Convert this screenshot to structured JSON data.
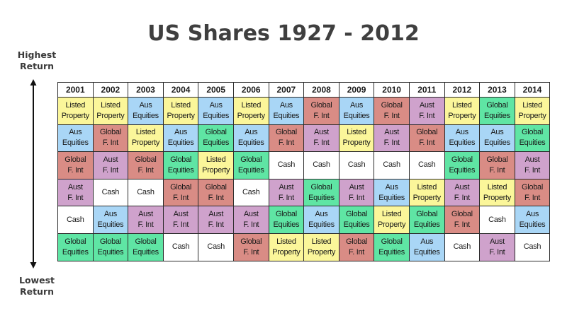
{
  "title": "US Shares 1927 - 2012",
  "axis": {
    "top_label": "Highest\nReturn",
    "bottom_label": "Lowest\nReturn"
  },
  "colors": {
    "Listed Property": "#fbf69a",
    "Aus Equities": "#a9d6f6",
    "Global F. Int": "#d98c85",
    "Aust F. Int": "#cfa2cc",
    "Global Equities": "#5fe5a4",
    "Cash": "#ffffff"
  },
  "chart_data": {
    "type": "table",
    "title": "US Shares 1927 - 2012",
    "ylabel_top": "Highest Return",
    "ylabel_bottom": "Lowest Return",
    "columns": [
      "2001",
      "2002",
      "2003",
      "2004",
      "2005",
      "2006",
      "2007",
      "2008",
      "2009",
      "2010",
      "2011",
      "2012",
      "2013",
      "2014"
    ],
    "rows": [
      [
        "Listed Property",
        "Listed Property",
        "Aus Equities",
        "Listed Property",
        "Aus Equities",
        "Listed Property",
        "Aus Equities",
        "Global F. Int",
        "Aus Equities",
        "Global F. Int",
        "Aust F. Int",
        "Listed Property",
        "Global Equities",
        "Listed Property"
      ],
      [
        "Aus Equities",
        "Global F. Int",
        "Listed Property",
        "Aus Equities",
        "Global Equities",
        "Aus Equities",
        "Global F. Int",
        "Aust F. Int",
        "Listed Property",
        "Aust F. Int",
        "Global F. Int",
        "Aus Equities",
        "Aus Equities",
        "Global Equities"
      ],
      [
        "Global F. Int",
        "Aust F. Int",
        "Global F. Int",
        "Global Equities",
        "Listed Property",
        "Global Equities",
        "Cash",
        "Cash",
        "Cash",
        "Cash",
        "Cash",
        "Global Equities",
        "Global F. Int",
        "Aust F. Int"
      ],
      [
        "Aust F. Int",
        "Cash",
        "Cash",
        "Global F. Int",
        "Global F. Int",
        "Cash",
        "Aust F. Int",
        "Global Equities",
        "Aust F. Int",
        "Aus Equities",
        "Listed Property",
        "Aust F. Int",
        "Listed Property",
        "Global F. Int"
      ],
      [
        "Cash",
        "Aus Equities",
        "Aust F. Int",
        "Aust F. Int",
        "Aust F. Int",
        "Aust F. Int",
        "Global Equities",
        "Aus Equities",
        "Global Equities",
        "Listed Property",
        "Global Equities",
        "Global F. Int",
        "Cash",
        "Aus Equities"
      ],
      [
        "Global Equities",
        "Global Equities",
        "Global Equities",
        "Cash",
        "Cash",
        "Global F. Int",
        "Listed Property",
        "Listed Property",
        "Global F. Int",
        "Global Equities",
        "Aus Equities",
        "Cash",
        "Aust F. Int",
        "Cash"
      ]
    ],
    "labels": {
      "Listed Property": "Listed\nProperty",
      "Aus Equities": "Aus\nEquities",
      "Global F. Int": "Global\nF. Int",
      "Aust F. Int": "Aust\nF. Int",
      "Global Equities": "Global\nEquities",
      "Cash": "Cash"
    }
  }
}
